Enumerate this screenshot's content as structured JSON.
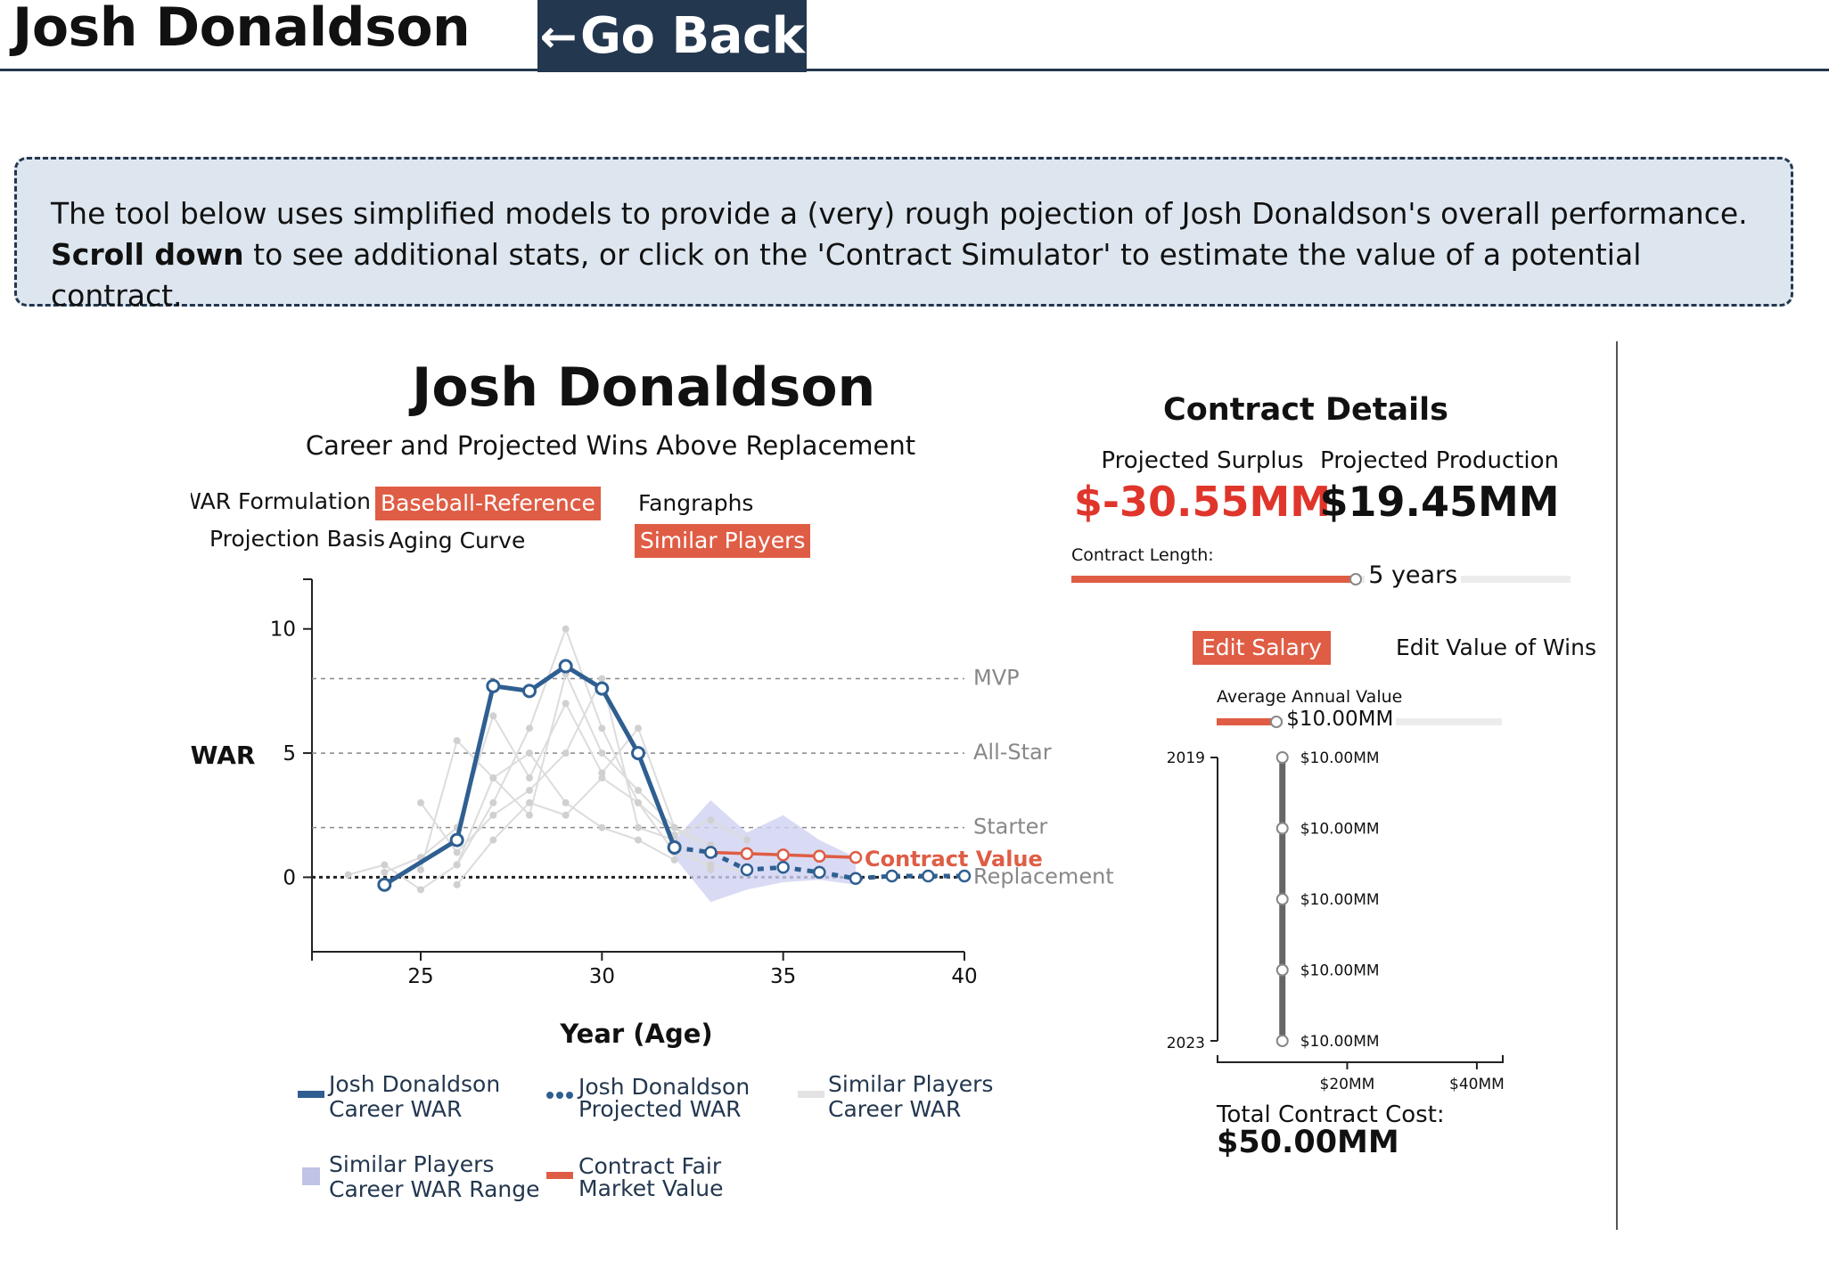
{
  "header": {
    "player_name": "Josh Donaldson",
    "back_label": "Go Back",
    "back_icon": "left-arrow-icon"
  },
  "info": {
    "text_main": "The tool below uses simplified models to provide a (very) rough pojection of Josh Donaldson's overall performance. ",
    "text_bold": "Scroll down",
    "text_rest": " to see additional stats, or click on the 'Contract Simulator' to estimate the value of a potential contract."
  },
  "chart_panel": {
    "title": "Josh Donaldson",
    "subtitle": "Career and Projected Wins Above Replacement",
    "war_formulation_label": "WAR Formulation:",
    "war_options": [
      "Baseball-Reference",
      "Fangraphs"
    ],
    "war_selected": "Baseball-Reference",
    "projection_label": "Projection Basis",
    "projection_options": [
      "Aging Curve",
      "Similar Players"
    ],
    "projection_selected": "Similar Players"
  },
  "chart_data": {
    "type": "line",
    "ylabel": "WAR",
    "xlabel": "Year (Age)",
    "xlim": [
      22,
      40
    ],
    "ylim": [
      -3,
      12
    ],
    "x_ticks": [
      25,
      30,
      35,
      40
    ],
    "y_ticks": [
      0,
      5,
      10
    ],
    "reference_lines": [
      {
        "label": "MVP",
        "value": 8
      },
      {
        "label": "All-Star",
        "value": 5
      },
      {
        "label": "Starter",
        "value": 2
      },
      {
        "label": "Replacement",
        "value": 0
      }
    ],
    "series": [
      {
        "name": "Josh Donaldson Career WAR",
        "color": "#2f5f91",
        "points": [
          [
            24,
            -0.3
          ],
          [
            26,
            1.5
          ],
          [
            27,
            7.7
          ],
          [
            28,
            7.5
          ],
          [
            29,
            8.5
          ],
          [
            30,
            7.6
          ],
          [
            31,
            5.0
          ],
          [
            32,
            1.2
          ]
        ]
      },
      {
        "name": "Josh Donaldson Projected WAR",
        "color": "#2f5f91",
        "points": [
          [
            32,
            1.2
          ],
          [
            33,
            1.0
          ],
          [
            34,
            0.3
          ],
          [
            35,
            0.4
          ],
          [
            36,
            0.2
          ],
          [
            37,
            -0.05
          ],
          [
            38,
            0.05
          ],
          [
            39,
            0.05
          ],
          [
            40,
            0.05
          ]
        ]
      },
      {
        "name": "Contract Fair Market Value",
        "color": "#df5d45",
        "points": [
          [
            33,
            1.0
          ],
          [
            34,
            0.95
          ],
          [
            35,
            0.9
          ],
          [
            36,
            0.85
          ],
          [
            37,
            0.8
          ]
        ]
      }
    ],
    "similar_range": {
      "name": "Similar Players Career WAR Range",
      "upper": [
        [
          32,
          1.5
        ],
        [
          33,
          3.1
        ],
        [
          34,
          1.8
        ],
        [
          35,
          2.5
        ],
        [
          36,
          1.5
        ],
        [
          37,
          0.8
        ]
      ],
      "lower": [
        [
          37,
          -0.3
        ],
        [
          36,
          -0.1
        ],
        [
          35,
          -0.2
        ],
        [
          34,
          -0.5
        ],
        [
          33,
          -1.0
        ],
        [
          32,
          0.8
        ]
      ]
    },
    "similar_players_lines": [
      [
        [
          26,
          0.5
        ],
        [
          27,
          3
        ],
        [
          28,
          6
        ],
        [
          29,
          10
        ],
        [
          30,
          6
        ],
        [
          31,
          3
        ],
        [
          32,
          1
        ],
        [
          33,
          0.5
        ],
        [
          34,
          0.2
        ]
      ],
      [
        [
          25,
          0.3
        ],
        [
          26,
          5.5
        ],
        [
          27,
          4
        ],
        [
          28,
          2.5
        ],
        [
          29,
          8.2
        ],
        [
          30,
          5
        ],
        [
          31,
          3.5
        ],
        [
          32,
          2
        ],
        [
          33,
          1
        ]
      ],
      [
        [
          24,
          0.2
        ],
        [
          25,
          0.8
        ],
        [
          26,
          2
        ],
        [
          27,
          6.5
        ],
        [
          28,
          4
        ],
        [
          29,
          7
        ],
        [
          30,
          4.2
        ],
        [
          31,
          6
        ],
        [
          32,
          2
        ],
        [
          33,
          1.3
        ]
      ],
      [
        [
          25,
          3
        ],
        [
          26,
          1
        ],
        [
          27,
          2.5
        ],
        [
          28,
          3.5
        ],
        [
          29,
          5
        ],
        [
          30,
          8
        ],
        [
          31,
          2
        ],
        [
          32,
          1.5
        ],
        [
          33,
          0.3
        ]
      ],
      [
        [
          23,
          0.1
        ],
        [
          24,
          0.5
        ],
        [
          25,
          -0.5
        ],
        [
          26,
          0.5
        ],
        [
          27,
          4
        ],
        [
          28,
          5
        ],
        [
          29,
          3
        ],
        [
          30,
          2
        ],
        [
          31,
          1.5
        ],
        [
          32,
          0.7
        ]
      ],
      [
        [
          26,
          -0.3
        ],
        [
          27,
          1.5
        ],
        [
          28,
          3
        ],
        [
          29,
          2.5
        ],
        [
          30,
          4
        ],
        [
          31,
          3
        ],
        [
          32,
          1.7
        ],
        [
          33,
          2.3
        ],
        [
          34,
          1.5
        ]
      ]
    ],
    "contract_value_label": "Contract Value"
  },
  "legend": [
    {
      "line1": "Josh Donaldson",
      "line2": "Career WAR",
      "swatch": "solid"
    },
    {
      "line1": "Josh Donaldson",
      "line2": "Projected WAR",
      "swatch": "dotted"
    },
    {
      "line1": "Similar Players",
      "line2": "Career WAR",
      "swatch": "gray"
    },
    {
      "line1": "Similar Players",
      "line2": "Career WAR Range",
      "swatch": "square"
    },
    {
      "line1": "Contract Fair",
      "line2": "Market Value",
      "swatch": "red"
    }
  ],
  "contract": {
    "title": "Contract Details",
    "surplus_label": "Projected Surplus",
    "surplus_value": "$-30.55MM",
    "production_label": "Projected Production",
    "production_value": "$19.45MM",
    "length_label": "Contract Length:",
    "length_value": "5 years",
    "length_years": 5,
    "length_fraction": 0.57,
    "tabs": [
      "Edit Salary",
      "Edit Value of Wins"
    ],
    "active_tab": "Edit Salary",
    "aav_label": "Average Annual Value",
    "aav_value": "$10.00MM",
    "aav_fraction": 0.21,
    "salary_axis": {
      "start_year": "2019",
      "end_year": "2023",
      "x_ticks": [
        "$20MM",
        "$40MM"
      ],
      "xlim": [
        0,
        44
      ]
    },
    "salaries": [
      {
        "year": 2019,
        "label": "$10.00MM",
        "value": 10
      },
      {
        "year": 2020,
        "label": "$10.00MM",
        "value": 10
      },
      {
        "year": 2021,
        "label": "$10.00MM",
        "value": 10
      },
      {
        "year": 2022,
        "label": "$10.00MM",
        "value": 10
      },
      {
        "year": 2023,
        "label": "$10.00MM",
        "value": 10
      }
    ],
    "total_label": "Total Contract Cost:",
    "total_value": "$50.00MM"
  },
  "colors": {
    "navy": "#23374f",
    "blue": "#2f5f91",
    "accent": "#df5d45",
    "surplus_red": "#e0352b",
    "range_fill": "#cfd2f2"
  }
}
